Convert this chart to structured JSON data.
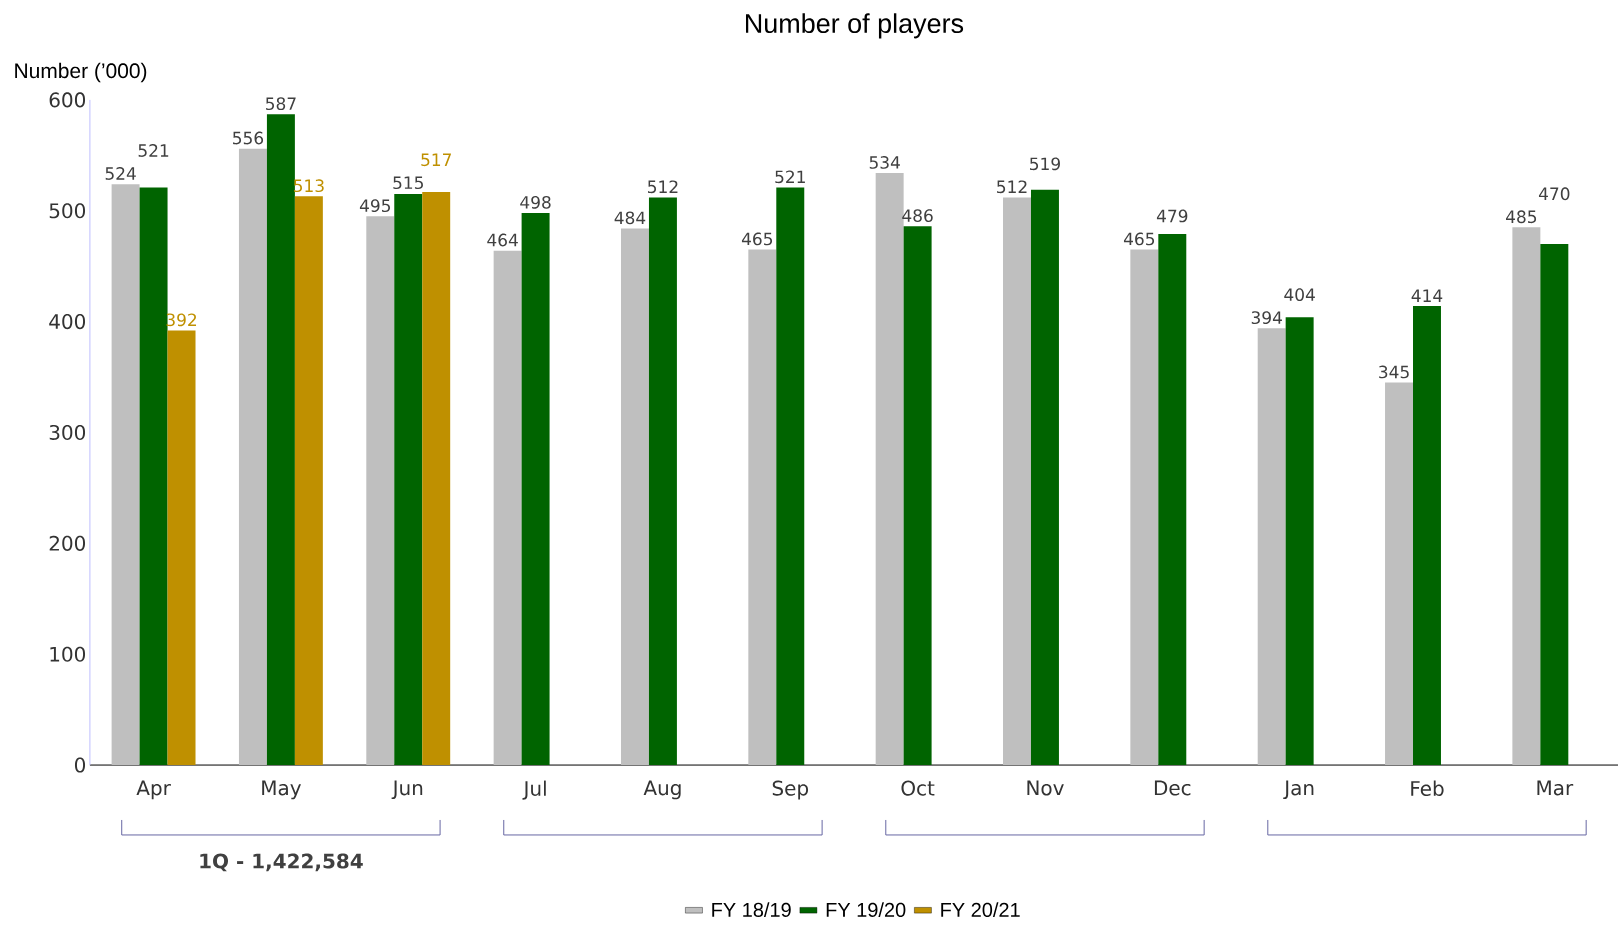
{
  "chart_data": {
    "type": "bar",
    "title": "Number of players",
    "ylabel": "Number (’000)",
    "categories": [
      "Apr",
      "May",
      "Jun",
      "Jul",
      "Aug",
      "Sep",
      "Oct",
      "Nov",
      "Dec",
      "Jan",
      "Feb",
      "Mar"
    ],
    "series": [
      {
        "name": "FY 18/19",
        "color": "#bfbfbf",
        "values": [
          524,
          556,
          495,
          464,
          484,
          465,
          534,
          512,
          465,
          394,
          345,
          485
        ],
        "value_labels": [
          "524",
          "556",
          "495",
          "464",
          "484",
          "465",
          "534",
          "512",
          "465",
          "394",
          "345",
          "485"
        ]
      },
      {
        "name": "FY 19/20",
        "color": "#006400",
        "values": [
          521,
          587,
          515,
          498,
          512,
          521,
          486,
          519,
          479,
          404,
          414,
          470
        ],
        "value_labels": [
          "521",
          "587",
          "515",
          "498",
          "512",
          "521",
          "486",
          "519",
          "479",
          "404",
          "414",
          "470"
        ]
      },
      {
        "name": "FY 20/21",
        "color": "#bf9000",
        "values": [
          392,
          513,
          517,
          null,
          null,
          null,
          null,
          null,
          null,
          null,
          null,
          null
        ],
        "value_labels": [
          "392",
          "513",
          "517",
          null,
          null,
          null,
          null,
          null,
          null,
          null,
          null,
          null
        ]
      }
    ],
    "ylim": [
      0,
      600
    ],
    "yticks": [
      0,
      100,
      200,
      300,
      400,
      500,
      600
    ],
    "grid": false,
    "legend": "bottom",
    "annotations": [
      "1Q - 1,422,584"
    ]
  }
}
